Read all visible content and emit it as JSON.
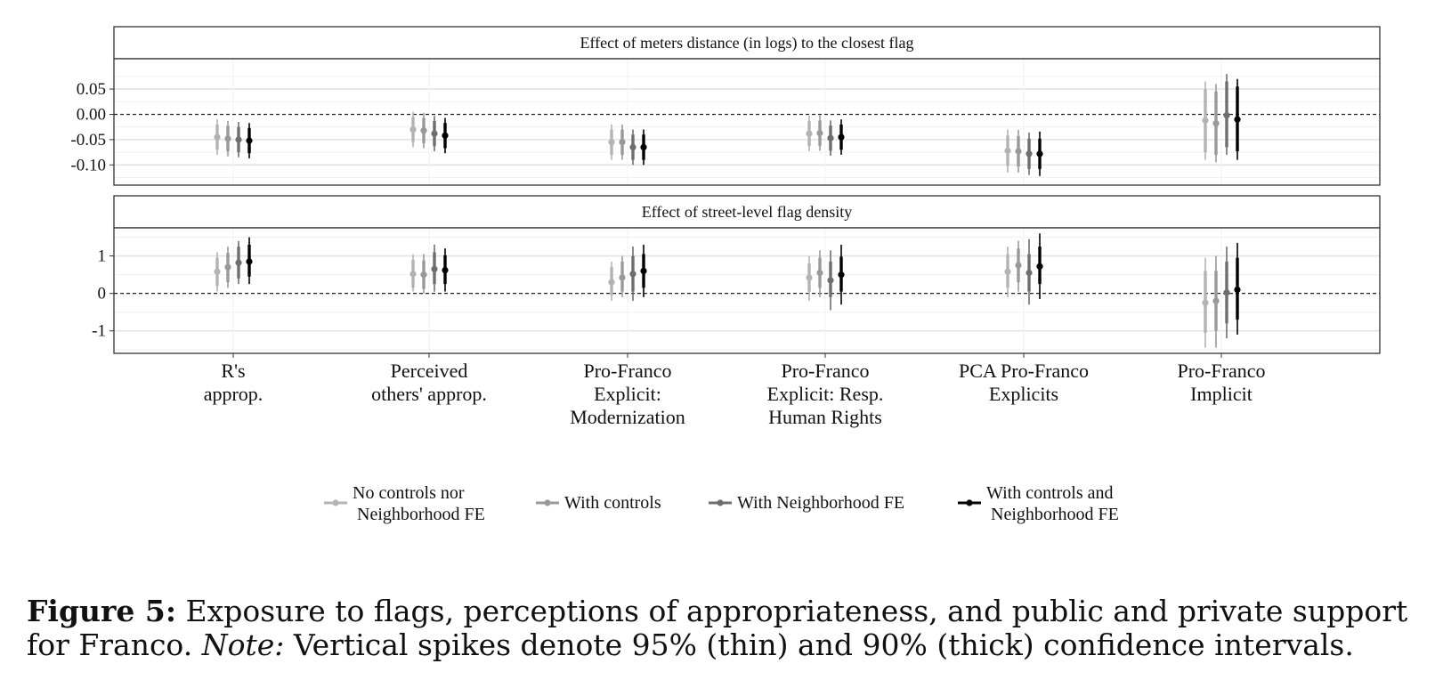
{
  "chart_data": [
    {
      "type": "scatter",
      "strip_title": "Effect of meters distance (in logs) to the closest flag",
      "ylim": [
        -0.14,
        0.11
      ],
      "yticks": [
        "0.05",
        "0.00",
        "-0.05",
        "-0.10"
      ],
      "ytick_values": [
        0.05,
        0.0,
        -0.05,
        -0.1
      ],
      "reference_line": 0,
      "categories": [
        "R's\napprop.",
        "Perceived\nothers' approp.",
        "Pro-Franco\nExplicit:\nModernization",
        "Pro-Franco\nExplicit: Resp.\nHuman Rights",
        "PCA Pro-Franco\nExplicits",
        "Pro-Franco\nImplicit"
      ],
      "series": [
        {
          "name": "No controls nor\nNeighborhood FE",
          "color": "#b3b3b3",
          "estimate": [
            -0.045,
            -0.03,
            -0.055,
            -0.038,
            -0.072,
            -0.012
          ],
          "ci90": [
            [
              -0.07,
              -0.02
            ],
            [
              -0.055,
              -0.005
            ],
            [
              -0.08,
              -0.03
            ],
            [
              -0.063,
              -0.013
            ],
            [
              -0.102,
              -0.042
            ],
            [
              -0.075,
              0.05
            ]
          ],
          "ci95": [
            [
              -0.08,
              -0.01
            ],
            [
              -0.065,
              0.005
            ],
            [
              -0.09,
              -0.02
            ],
            [
              -0.073,
              -0.003
            ],
            [
              -0.115,
              -0.03
            ],
            [
              -0.09,
              0.065
            ]
          ]
        },
        {
          "name": "With controls",
          "color": "#999999",
          "estimate": [
            -0.048,
            -0.032,
            -0.055,
            -0.037,
            -0.073,
            -0.018
          ],
          "ci90": [
            [
              -0.073,
              -0.023
            ],
            [
              -0.057,
              -0.007
            ],
            [
              -0.08,
              -0.03
            ],
            [
              -0.062,
              -0.012
            ],
            [
              -0.103,
              -0.043
            ],
            [
              -0.08,
              0.045
            ]
          ],
          "ci95": [
            [
              -0.083,
              -0.013
            ],
            [
              -0.067,
              0.003
            ],
            [
              -0.09,
              -0.02
            ],
            [
              -0.072,
              -0.002
            ],
            [
              -0.115,
              -0.031
            ],
            [
              -0.095,
              0.06
            ]
          ]
        },
        {
          "name": "With Neighborhood FE",
          "color": "#6e6e6e",
          "estimate": [
            -0.05,
            -0.038,
            -0.065,
            -0.047,
            -0.078,
            -0.002
          ],
          "ci90": [
            [
              -0.075,
              -0.025
            ],
            [
              -0.063,
              -0.013
            ],
            [
              -0.09,
              -0.04
            ],
            [
              -0.072,
              -0.022
            ],
            [
              -0.108,
              -0.048
            ],
            [
              -0.065,
              0.065
            ]
          ],
          "ci95": [
            [
              -0.085,
              -0.015
            ],
            [
              -0.073,
              -0.003
            ],
            [
              -0.1,
              -0.03
            ],
            [
              -0.082,
              -0.012
            ],
            [
              -0.12,
              -0.036
            ],
            [
              -0.08,
              0.08
            ]
          ]
        },
        {
          "name": "With controls and\nNeighborhood FE",
          "color": "#000000",
          "estimate": [
            -0.052,
            -0.042,
            -0.065,
            -0.045,
            -0.078,
            -0.01
          ],
          "ci90": [
            [
              -0.077,
              -0.027
            ],
            [
              -0.067,
              -0.017
            ],
            [
              -0.09,
              -0.04
            ],
            [
              -0.07,
              -0.02
            ],
            [
              -0.108,
              -0.048
            ],
            [
              -0.073,
              0.055
            ]
          ],
          "ci95": [
            [
              -0.087,
              -0.017
            ],
            [
              -0.077,
              -0.007
            ],
            [
              -0.1,
              -0.03
            ],
            [
              -0.08,
              -0.01
            ],
            [
              -0.122,
              -0.034
            ],
            [
              -0.09,
              0.07
            ]
          ]
        }
      ],
      "grid": true
    },
    {
      "type": "scatter",
      "strip_title": "Effect of street-level flag density",
      "ylim": [
        -1.6,
        1.75
      ],
      "yticks": [
        "1",
        "0",
        "-1"
      ],
      "ytick_values": [
        1,
        0,
        -1
      ],
      "reference_line": 0,
      "categories": [
        "R's\napprop.",
        "Perceived\nothers' approp.",
        "Pro-Franco\nExplicit:\nModernization",
        "Pro-Franco\nExplicit: Resp.\nHuman Rights",
        "PCA Pro-Franco\nExplicits",
        "Pro-Franco\nImplicit"
      ],
      "series": [
        {
          "name": "No controls nor\nNeighborhood FE",
          "color": "#b3b3b3",
          "estimate": [
            0.58,
            0.52,
            0.3,
            0.42,
            0.58,
            -0.25
          ],
          "ci90": [
            [
              0.2,
              0.95
            ],
            [
              0.15,
              0.9
            ],
            [
              -0.05,
              0.7
            ],
            [
              0.05,
              0.8
            ],
            [
              0.15,
              1.05
            ],
            [
              -1.05,
              0.6
            ]
          ],
          "ci95": [
            [
              0.05,
              1.1
            ],
            [
              0.05,
              1.05
            ],
            [
              -0.2,
              0.85
            ],
            [
              -0.2,
              1.0
            ],
            [
              -0.1,
              1.25
            ],
            [
              -1.45,
              0.95
            ]
          ]
        },
        {
          "name": "With controls",
          "color": "#999999",
          "estimate": [
            0.7,
            0.5,
            0.42,
            0.55,
            0.75,
            -0.2
          ],
          "ci90": [
            [
              0.3,
              1.08
            ],
            [
              0.12,
              0.88
            ],
            [
              0.05,
              0.85
            ],
            [
              0.15,
              0.95
            ],
            [
              0.3,
              1.2
            ],
            [
              -1.0,
              0.6
            ]
          ],
          "ci95": [
            [
              0.15,
              1.25
            ],
            [
              0.0,
              1.05
            ],
            [
              -0.1,
              1.0
            ],
            [
              -0.1,
              1.15
            ],
            [
              0.05,
              1.4
            ],
            [
              -1.45,
              1.0
            ]
          ]
        },
        {
          "name": "With Neighborhood FE",
          "color": "#6e6e6e",
          "estimate": [
            0.82,
            0.65,
            0.52,
            0.35,
            0.55,
            0.02
          ],
          "ci90": [
            [
              0.4,
              1.25
            ],
            [
              0.25,
              1.1
            ],
            [
              0.05,
              1.0
            ],
            [
              -0.1,
              0.85
            ],
            [
              0.05,
              1.05
            ],
            [
              -0.8,
              0.85
            ]
          ],
          "ci95": [
            [
              0.25,
              1.4
            ],
            [
              0.05,
              1.3
            ],
            [
              -0.2,
              1.25
            ],
            [
              -0.45,
              1.15
            ],
            [
              -0.3,
              1.45
            ],
            [
              -1.2,
              1.25
            ]
          ]
        },
        {
          "name": "With controls and\nNeighborhood FE",
          "color": "#000000",
          "estimate": [
            0.85,
            0.62,
            0.6,
            0.5,
            0.72,
            0.1
          ],
          "ci90": [
            [
              0.45,
              1.3
            ],
            [
              0.25,
              1.02
            ],
            [
              0.15,
              1.05
            ],
            [
              0.05,
              0.98
            ],
            [
              0.25,
              1.25
            ],
            [
              -0.7,
              0.95
            ]
          ],
          "ci95": [
            [
              0.25,
              1.5
            ],
            [
              0.05,
              1.2
            ],
            [
              -0.1,
              1.3
            ],
            [
              -0.3,
              1.3
            ],
            [
              -0.15,
              1.6
            ],
            [
              -1.1,
              1.35
            ]
          ]
        }
      ],
      "grid": true
    }
  ],
  "legend_position": "bottom",
  "caption": {
    "label": "Figure 5:",
    "text": " Exposure to flags, perceptions of appropriateness, and public and private support for Franco. ",
    "note_label": "Note:",
    "note_text": " Vertical spikes denote 95% (thin) and 90% (thick) confidence intervals."
  }
}
